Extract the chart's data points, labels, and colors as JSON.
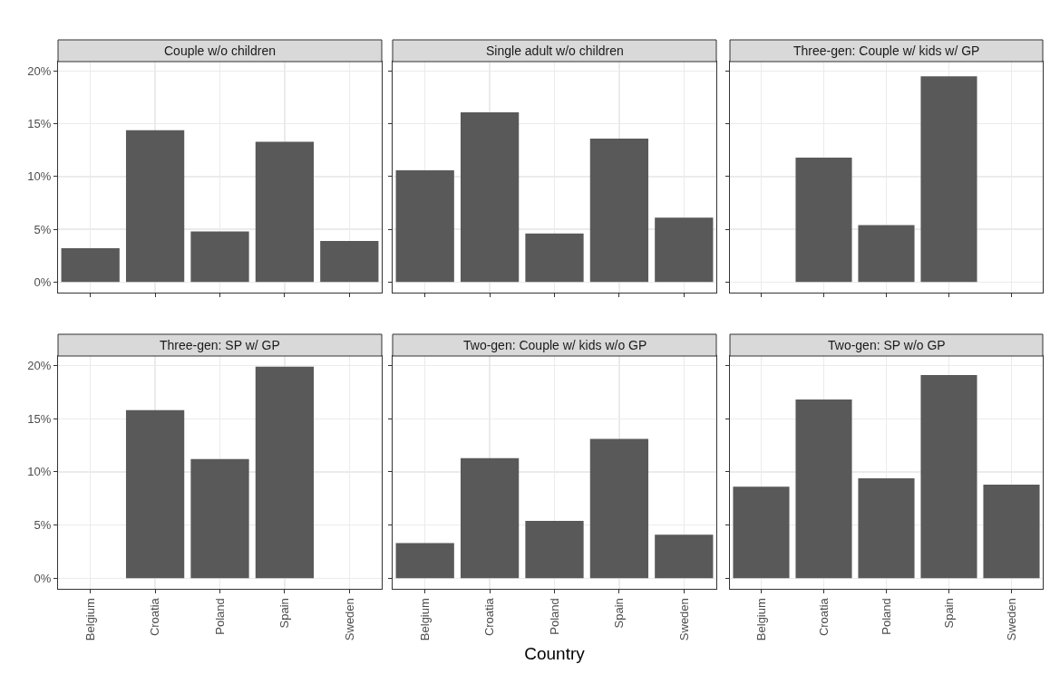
{
  "chart_data": [
    {
      "type": "bar",
      "title": "Couple w/o children",
      "categories": [
        "Belgium",
        "Croatia",
        "Poland",
        "Spain",
        "Sweden"
      ],
      "values": [
        3.2,
        14.4,
        4.8,
        13.3,
        3.9
      ],
      "color": "#595959",
      "ylim": [
        -1,
        20.9
      ],
      "yticks": [
        {
          "value": 0,
          "label": "0%"
        },
        {
          "value": 5,
          "label": "5%"
        },
        {
          "value": 10,
          "label": "10%"
        },
        {
          "value": 15,
          "label": "15%"
        },
        {
          "value": 20,
          "label": "20%"
        }
      ],
      "grid": true,
      "tick_labels": "y"
    },
    {
      "type": "bar",
      "title": "Single adult w/o children",
      "categories": [
        "Belgium",
        "Croatia",
        "Poland",
        "Spain",
        "Sweden"
      ],
      "values": [
        10.6,
        16.1,
        4.6,
        13.6,
        6.1
      ],
      "color": "#595959",
      "ylim": [
        -1,
        20.9
      ],
      "yticks": [
        {
          "value": 0,
          "label": null
        },
        {
          "value": 5,
          "label": null
        },
        {
          "value": 10,
          "label": null
        },
        {
          "value": 15,
          "label": null
        },
        {
          "value": 20,
          "label": null
        }
      ],
      "grid": true,
      "tick_labels": false
    },
    {
      "type": "bar",
      "title": "Three-gen: Couple w/ kids w/ GP",
      "categories": [
        "Belgium",
        "Croatia",
        "Poland",
        "Spain",
        "Sweden"
      ],
      "values": [
        null,
        11.8,
        5.4,
        19.5,
        null
      ],
      "color": "#595959",
      "ylim": [
        -1,
        20.9
      ],
      "yticks": [
        {
          "value": 0,
          "label": null
        },
        {
          "value": 5,
          "label": null
        },
        {
          "value": 10,
          "label": null
        },
        {
          "value": 15,
          "label": null
        },
        {
          "value": 20,
          "label": null
        }
      ],
      "grid": true,
      "tick_labels": false
    },
    {
      "type": "bar",
      "title": "Three-gen: SP w/ GP",
      "categories": [
        "Belgium",
        "Croatia",
        "Poland",
        "Spain",
        "Sweden"
      ],
      "values": [
        null,
        15.8,
        11.2,
        19.9,
        null
      ],
      "color": "#595959",
      "ylim": [
        -1,
        20.9
      ],
      "yticks": [
        {
          "value": 0,
          "label": "0%"
        },
        {
          "value": 5,
          "label": "5%"
        },
        {
          "value": 10,
          "label": "10%"
        },
        {
          "value": 15,
          "label": "15%"
        },
        {
          "value": 20,
          "label": "20%"
        }
      ],
      "grid": true
    },
    {
      "type": "bar",
      "title": "Two-gen: Couple w/ kids w/o GP",
      "xlabel": "Country",
      "categories": [
        "Belgium",
        "Croatia",
        "Poland",
        "Spain",
        "Sweden"
      ],
      "values": [
        3.3,
        11.3,
        5.4,
        13.1,
        4.1
      ],
      "color": "#595959",
      "ylim": [
        -1,
        20.9
      ],
      "yticks": [
        {
          "value": 0,
          "label": null
        },
        {
          "value": 5,
          "label": null
        },
        {
          "value": 10,
          "label": null
        },
        {
          "value": 15,
          "label": null
        },
        {
          "value": 20,
          "label": null
        }
      ],
      "grid": true,
      "tick_labels": "x"
    },
    {
      "type": "bar",
      "title": "Two-gen: SP w/o GP",
      "categories": [
        "Belgium",
        "Croatia",
        "Poland",
        "Spain",
        "Sweden"
      ],
      "values": [
        8.6,
        16.8,
        9.4,
        19.1,
        8.8
      ],
      "color": "#595959",
      "ylim": [
        -1,
        20.9
      ],
      "yticks": [
        {
          "value": 0,
          "label": null
        },
        {
          "value": 5,
          "label": null
        },
        {
          "value": 10,
          "label": null
        },
        {
          "value": 15,
          "label": null
        },
        {
          "value": 20,
          "label": null
        }
      ],
      "grid": true,
      "tick_labels": "x"
    }
  ]
}
